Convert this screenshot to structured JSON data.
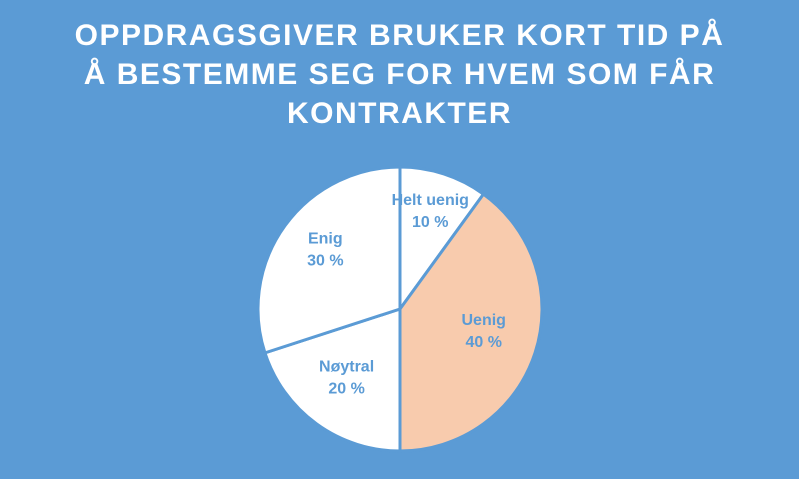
{
  "chart_data": {
    "type": "pie",
    "title": "OPPDRAGSGIVER BRUKER KORT TID PÅ Å BESTEMME SEG FOR HVEM SOM FÅR KONTRAKTER",
    "slices": [
      {
        "label": "Helt uenig",
        "value": 10,
        "value_label": "10 %",
        "color": "#ffffff"
      },
      {
        "label": "Uenig",
        "value": 40,
        "value_label": "40 %",
        "color": "#f8cbad"
      },
      {
        "label": "Nøytral",
        "value": 20,
        "value_label": "20 %",
        "color": "#ffffff"
      },
      {
        "label": "Enig",
        "value": 30,
        "value_label": "30 %",
        "color": "#ffffff"
      }
    ],
    "start_angle": "12 o'clock, clockwise",
    "label_color": "#5b9bd5",
    "border_color": "#5b9bd5",
    "background_color": "#5b9bd5",
    "legend": "none"
  }
}
